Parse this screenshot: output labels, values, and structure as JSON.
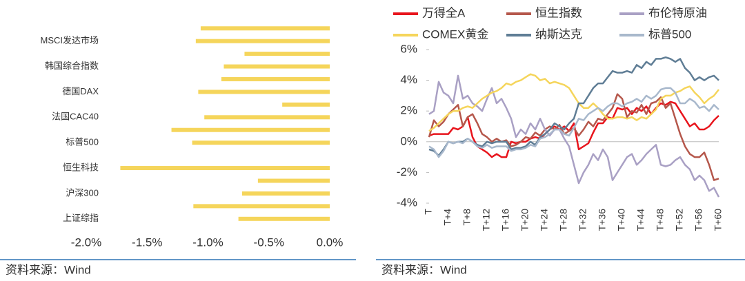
{
  "chart_data": [
    {
      "type": "hbar",
      "categories": [
        null,
        "MSCI发达市场",
        null,
        "韩国综合指数",
        null,
        "德国DAX",
        null,
        "法国CAC40",
        null,
        "标普500",
        null,
        "恒生科技",
        null,
        "沪深300",
        null,
        "上证综指"
      ],
      "values": [
        -1.06,
        -1.1,
        -0.7,
        -0.87,
        -0.89,
        -1.08,
        -0.39,
        -1.03,
        -1.3,
        -1.13,
        0,
        -1.72,
        -0.59,
        -0.72,
        -1.12,
        -0.75
      ],
      "color": "#f5d55b",
      "xlim": [
        -2.0,
        0.0
      ],
      "xticks": [
        {
          "value": -2.0,
          "label": "-2.0%"
        },
        {
          "value": -1.5,
          "label": "-1.5%"
        },
        {
          "value": -1.0,
          "label": "-1.0%"
        },
        {
          "value": -0.5,
          "label": "-0.5%"
        },
        {
          "value": 0.0,
          "label": "0.0%"
        }
      ]
    },
    {
      "type": "line",
      "categories": [
        "T",
        null,
        null,
        null,
        "T+4",
        null,
        null,
        null,
        "T+8",
        null,
        null,
        null,
        "T+12",
        null,
        null,
        null,
        "T+16",
        null,
        null,
        null,
        "T+20",
        null,
        null,
        null,
        "T+24",
        null,
        null,
        null,
        "T+28",
        null,
        null,
        null,
        "T+32",
        null,
        null,
        null,
        "T+36",
        null,
        null,
        null,
        "T+40",
        null,
        null,
        null,
        "T+44",
        null,
        null,
        null,
        "T+48",
        null,
        null,
        null,
        "T+52",
        null,
        null,
        null,
        "T+56",
        null,
        null,
        null,
        "T+60"
      ],
      "ylim": [
        -4,
        6
      ],
      "yticks": [
        {
          "value": -4,
          "label": "-4%"
        },
        {
          "value": -2,
          "label": "-2%"
        },
        {
          "value": 0,
          "label": "0%"
        },
        {
          "value": 2,
          "label": "2%"
        },
        {
          "value": 4,
          "label": "4%"
        },
        {
          "value": 6,
          "label": "6%"
        }
      ],
      "series": [
        {
          "name": "万得全A",
          "color": "#e8141c",
          "values": [
            0.4,
            0.5,
            0.5,
            0.5,
            0.5,
            0.9,
            0.8,
            1.0,
            1.6,
            0.3,
            -0.3,
            -0.5,
            -0.7,
            -1.0,
            -0.8,
            -1.0,
            -1.0,
            0.0,
            -0.1,
            0.0,
            0.0,
            0.2,
            0.3,
            0.2,
            0.5,
            0.8,
            1.0,
            0.8,
            1.0,
            0.7,
            1.2,
            -0.5,
            -0.3,
            -0.1,
            0.6,
            1.2,
            1.2,
            1.6,
            1.5,
            2.2,
            2.1,
            2.2,
            1.8,
            2.2,
            2.0,
            2.3,
            1.8,
            2.2,
            2.5,
            2.4,
            2.6,
            2.5,
            2.0,
            1.5,
            1.0,
            1.2,
            0.8,
            0.8,
            1.0,
            1.4,
            1.7
          ]
        },
        {
          "name": "恒生指数",
          "color": "#b5574b",
          "values": [
            0.3,
            1.4,
            1.0,
            1.3,
            1.8,
            2.1,
            2.4,
            1.0,
            1.6,
            1.8,
            1.2,
            0.5,
            0.3,
            0.0,
            0.2,
            0.0,
            0.1,
            -0.3,
            -0.2,
            0.0,
            0.3,
            0.2,
            0.6,
            0.4,
            0.8,
            1.0,
            0.8,
            1.1,
            0.5,
            0.7,
            0.9,
            0.4,
            0.8,
            1.3,
            1.0,
            1.5,
            1.4,
            1.8,
            2.2,
            3.1,
            2.8,
            1.6,
            2.0,
            1.9,
            2.4,
            1.8,
            2.5,
            2.6,
            2.9,
            2.2,
            2.5,
            1.5,
            0.5,
            -0.3,
            -0.8,
            -1.0,
            -1.0,
            -0.7,
            -1.5,
            -2.5,
            -2.4
          ]
        },
        {
          "name": "布伦特原油",
          "color": "#a9a0c4",
          "values": [
            1.8,
            2.0,
            3.9,
            3.2,
            3.0,
            2.5,
            4.3,
            2.8,
            3.0,
            2.5,
            2.3,
            2.0,
            2.8,
            3.5,
            2.5,
            2.8,
            2.2,
            1.5,
            0.3,
            0.8,
            0.5,
            1.2,
            0.8,
            1.5,
            0.8,
            0.4,
            0.8,
            0.8,
            0.2,
            -0.3,
            -1.5,
            -2.7,
            -2.0,
            -1.5,
            -0.8,
            -1.2,
            -0.5,
            -1.0,
            -2.5,
            -2.0,
            -1.5,
            -1.0,
            -0.8,
            -1.5,
            -1.2,
            -0.8,
            -0.5,
            -0.2,
            -1.5,
            -1.6,
            -1.5,
            -1.2,
            -1.0,
            -1.5,
            -1.8,
            -2.5,
            -2.2,
            -2.5,
            -3.2,
            -3.0,
            -3.6
          ]
        },
        {
          "name": "COMEX黄金",
          "color": "#f5d55b",
          "values": [
            0.7,
            0.9,
            1.2,
            1.5,
            1.8,
            2.0,
            2.0,
            2.2,
            2.3,
            2.2,
            2.5,
            2.8,
            3.0,
            3.2,
            3.3,
            3.5,
            3.8,
            3.7,
            3.9,
            4.0,
            4.2,
            4.4,
            4.3,
            4.0,
            4.1,
            3.8,
            3.9,
            3.8,
            3.7,
            3.5,
            3.0,
            2.5,
            2.2,
            2.2,
            2.5,
            2.2,
            1.8,
            1.5,
            1.5,
            1.6,
            1.6,
            1.5,
            1.6,
            1.4,
            1.6,
            1.5,
            1.8,
            2.1,
            2.8,
            3.0,
            3.0,
            3.2,
            3.3,
            3.5,
            3.6,
            3.2,
            2.9,
            2.5,
            2.8,
            3.0,
            3.4
          ]
        },
        {
          "name": "纳斯达克",
          "color": "#5f7d95",
          "values": [
            -0.5,
            -0.6,
            -0.9,
            -0.5,
            0.0,
            -0.1,
            0.0,
            0.0,
            0.2,
            0.0,
            -0.2,
            -0.3,
            0.0,
            -0.1,
            0.0,
            0.0,
            0.0,
            -0.5,
            -0.4,
            -0.4,
            -0.3,
            0.0,
            -0.2,
            0.3,
            0.5,
            0.8,
            1.2,
            1.0,
            0.8,
            1.2,
            1.5,
            2.5,
            2.5,
            3.0,
            3.5,
            3.8,
            3.8,
            4.2,
            4.6,
            4.5,
            4.5,
            4.6,
            4.5,
            5.0,
            4.8,
            5.2,
            5.0,
            5.4,
            5.4,
            5.5,
            5.4,
            5.2,
            5.4,
            4.8,
            4.5,
            4.0,
            4.2,
            4.0,
            4.2,
            4.3,
            4.0
          ]
        },
        {
          "name": "标普500",
          "color": "#a8b8cc",
          "values": [
            -0.3,
            -0.5,
            -1.0,
            -0.6,
            0.0,
            -0.1,
            0.0,
            -0.1,
            0.2,
            0.0,
            -0.3,
            -0.4,
            -0.2,
            -0.4,
            -0.3,
            -0.3,
            -0.3,
            -0.6,
            -0.5,
            -0.5,
            -0.4,
            -0.2,
            -0.3,
            0.2,
            0.3,
            0.5,
            0.8,
            0.8,
            0.5,
            0.4,
            0.9,
            1.5,
            1.4,
            1.8,
            2.0,
            2.2,
            2.0,
            2.3,
            2.5,
            2.5,
            2.3,
            2.5,
            2.6,
            2.8,
            2.6,
            3.0,
            2.8,
            3.0,
            3.4,
            3.5,
            3.5,
            3.2,
            2.5,
            2.5,
            2.8,
            2.6,
            2.2,
            2.3,
            2.0,
            2.4,
            2.1
          ]
        }
      ]
    }
  ],
  "footer": [
    "资料来源：Wind",
    "资料来源：Wind"
  ]
}
